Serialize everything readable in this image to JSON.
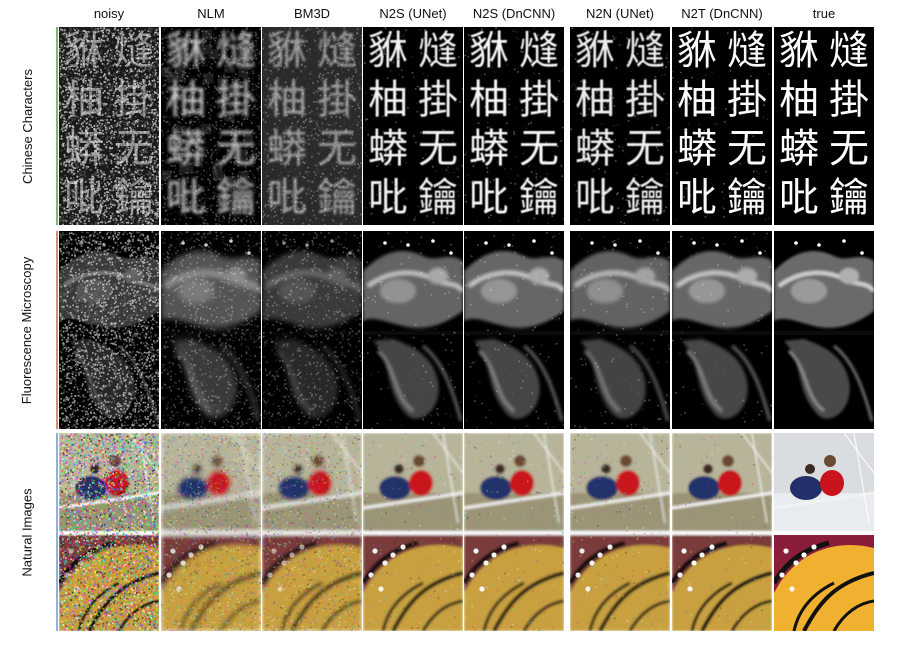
{
  "columns": [
    "noisy",
    "NLM",
    "BM3D",
    "N2S (UNet)",
    "N2S (DnCNN)",
    "N2N (UNet)",
    "N2T (DnCNN)",
    "true"
  ],
  "rows": [
    {
      "label": "Chinese Characters",
      "accent": "#7fb86a"
    },
    {
      "label": "Fluorescence Microscopy",
      "accent": "#d98b78"
    },
    {
      "label": "Natural Images",
      "accent": "#8fb2d6"
    }
  ],
  "characters": [
    "貅",
    "熢",
    "柚",
    "掛",
    "蟒",
    "无",
    "吡",
    "鑰"
  ]
}
